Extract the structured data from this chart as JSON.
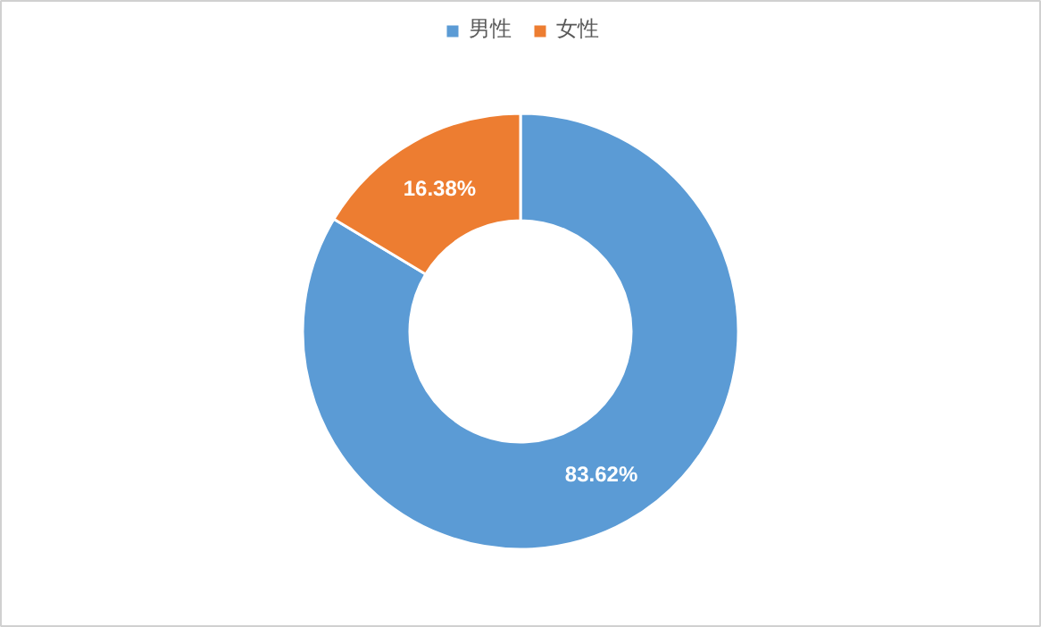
{
  "chart_data": {
    "type": "donut",
    "categories": [
      "男性",
      "女性"
    ],
    "values": [
      83.62,
      16.38
    ],
    "colors": [
      "#5b9bd5",
      "#ed7d31"
    ],
    "value_labels": [
      "83.62%",
      "16.38%"
    ],
    "legend": "top"
  }
}
